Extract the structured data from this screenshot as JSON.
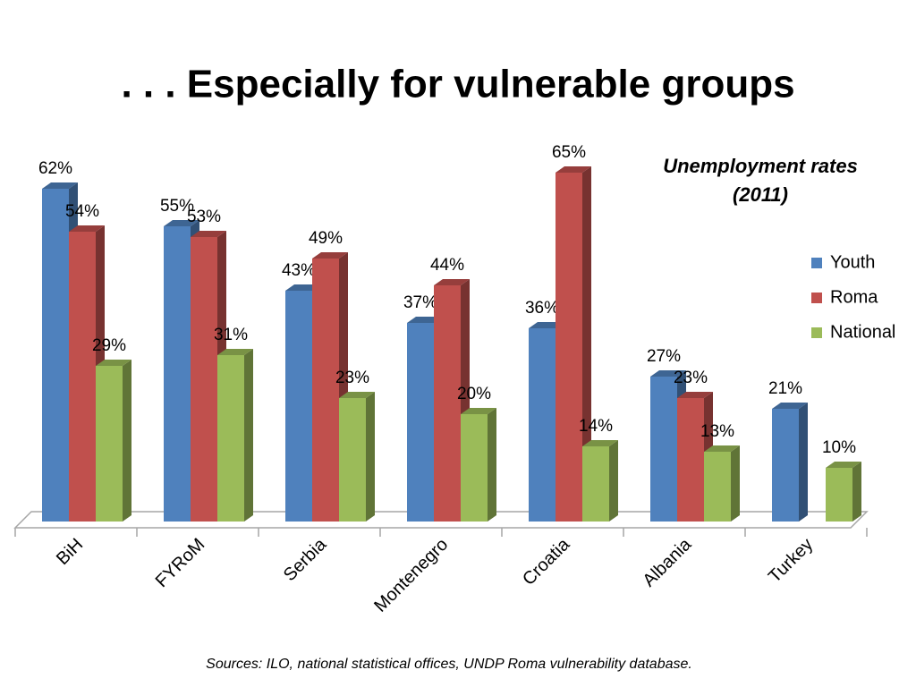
{
  "chart_data": {
    "type": "bar3d",
    "title": ". . . Especially for vulnerable groups",
    "annotation": "Unemployment rates (2011)",
    "source": "Sources: ILO, national statistical offices, UNDP Roma vulnerability database.",
    "categories": [
      "BiH",
      "FYRoM",
      "Serbia",
      "Montenegro",
      "Croatia",
      "Albania",
      "Turkey"
    ],
    "series": [
      {
        "name": "Youth",
        "color": "#4f81bd",
        "values": [
          62,
          55,
          43,
          37,
          36,
          27,
          21
        ],
        "value_labels": [
          "62%",
          "55%",
          "43%",
          "37%",
          "36%",
          "27%",
          "21%"
        ]
      },
      {
        "name": "Roma",
        "color": "#c0504d",
        "values": [
          54,
          53,
          49,
          44,
          65,
          23,
          null
        ],
        "value_labels": [
          "54%",
          "53%",
          "49%",
          "44%",
          "65%",
          "23%",
          null
        ]
      },
      {
        "name": "National",
        "color": "#9bbb59",
        "values": [
          29,
          31,
          23,
          20,
          14,
          13,
          10
        ],
        "value_labels": [
          "29%",
          "31%",
          "23%",
          "20%",
          "14%",
          "13%",
          "10%"
        ]
      }
    ],
    "legend": "right"
  }
}
